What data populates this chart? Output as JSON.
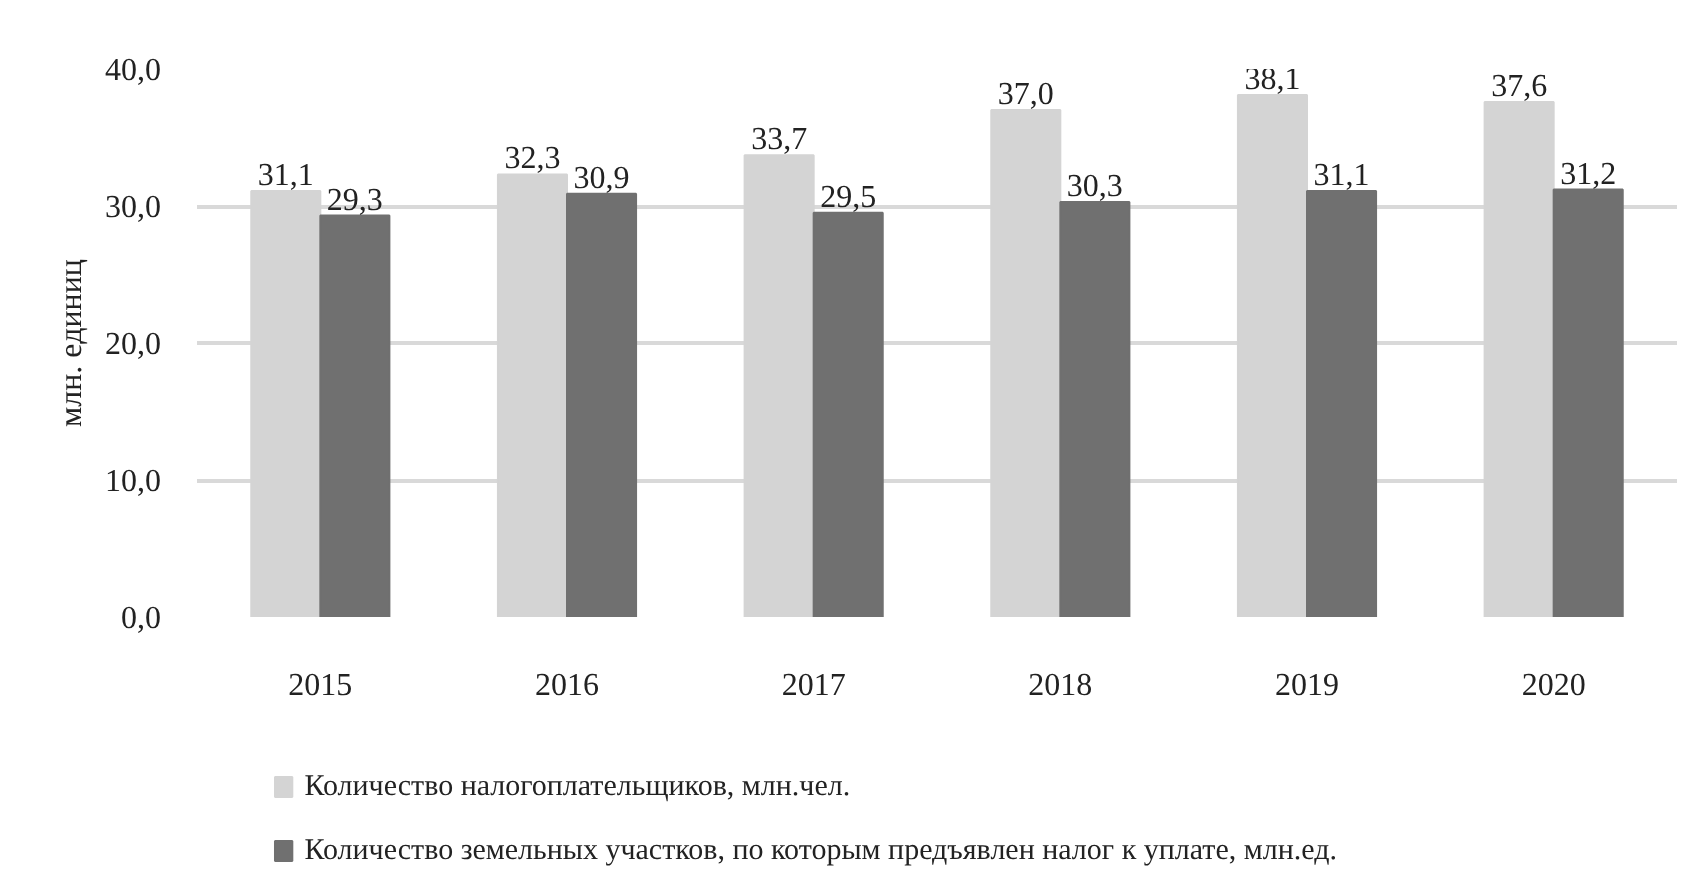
{
  "chart_data": {
    "type": "bar",
    "ylabel": "млн. единиц",
    "categories": [
      "2015",
      "2016",
      "2017",
      "2018",
      "2019",
      "2020"
    ],
    "series": [
      {
        "name": "Количество налогоплательщиков, млн.чел.",
        "color": "#d4d4d4",
        "values": [
          31.1,
          32.3,
          33.7,
          37.0,
          38.1,
          37.6
        ],
        "value_labels": [
          "31,1",
          "32,3",
          "33,7",
          "37,0",
          "38,1",
          "37,6"
        ]
      },
      {
        "name": "Количество земельных участков, по которым предъявлен налог к уплате, млн.ед.",
        "color": "#707070",
        "values": [
          29.3,
          30.9,
          29.5,
          30.3,
          31.1,
          31.2
        ],
        "value_labels": [
          "29,3",
          "30,9",
          "29,5",
          "30,3",
          "31,1",
          "31,2"
        ]
      }
    ],
    "ylim": [
      0,
      40
    ],
    "yticks": [
      {
        "value": 0,
        "label": "0,0"
      },
      {
        "value": 10,
        "label": "10,0"
      },
      {
        "value": 20,
        "label": "20,0"
      },
      {
        "value": 30,
        "label": "30,0"
      },
      {
        "value": 40,
        "label": "40,0"
      }
    ],
    "grid": "y",
    "legend": "bottom"
  }
}
